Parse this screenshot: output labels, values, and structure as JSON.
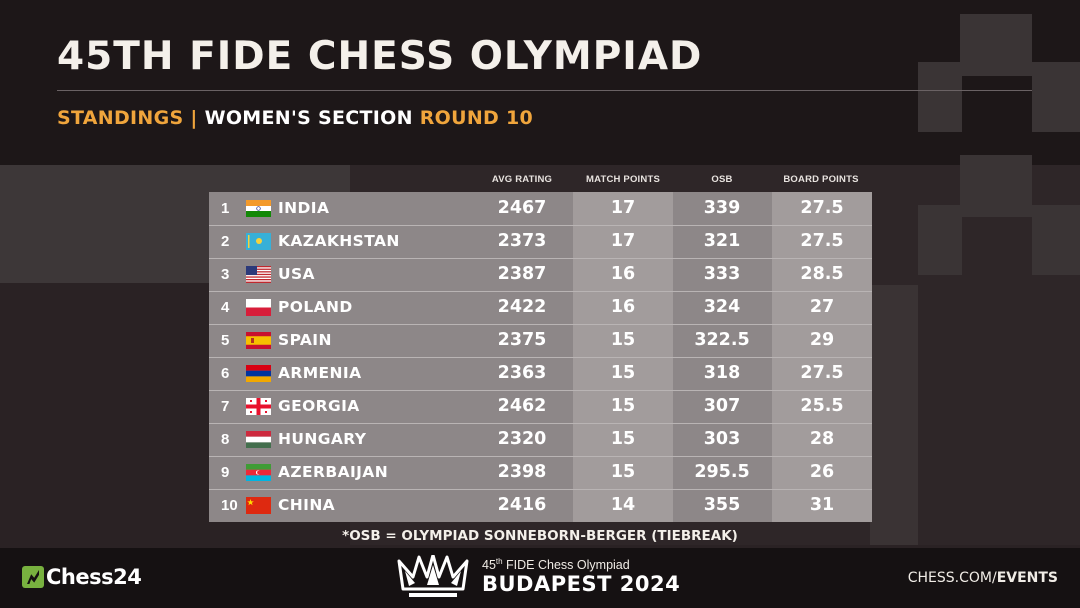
{
  "header": {
    "title": "45TH FIDE CHESS OLYMPIAD",
    "subtitle_part1": "STANDINGS |",
    "subtitle_part2": "WOMEN'S SECTION",
    "subtitle_part3": "ROUND 10"
  },
  "columns": {
    "avg_rating": "AVG RATING",
    "match_points": "MATCH POINTS",
    "osb": "OSB",
    "board_points": "BOARD POINTS"
  },
  "standings": [
    {
      "rank": "1",
      "country": "INDIA",
      "flag": "india-flag",
      "avg_rating": "2467",
      "match_points": "17",
      "osb": "339",
      "board_points": "27.5"
    },
    {
      "rank": "2",
      "country": "KAZAKHSTAN",
      "flag": "kazakhstan-flag",
      "avg_rating": "2373",
      "match_points": "17",
      "osb": "321",
      "board_points": "27.5"
    },
    {
      "rank": "3",
      "country": "USA",
      "flag": "usa-flag",
      "avg_rating": "2387",
      "match_points": "16",
      "osb": "333",
      "board_points": "28.5"
    },
    {
      "rank": "4",
      "country": "POLAND",
      "flag": "poland-flag",
      "avg_rating": "2422",
      "match_points": "16",
      "osb": "324",
      "board_points": "27"
    },
    {
      "rank": "5",
      "country": "SPAIN",
      "flag": "spain-flag",
      "avg_rating": "2375",
      "match_points": "15",
      "osb": "322.5",
      "board_points": "29"
    },
    {
      "rank": "6",
      "country": "ARMENIA",
      "flag": "armenia-flag",
      "avg_rating": "2363",
      "match_points": "15",
      "osb": "318",
      "board_points": "27.5"
    },
    {
      "rank": "7",
      "country": "GEORGIA",
      "flag": "georgia-flag",
      "avg_rating": "2462",
      "match_points": "15",
      "osb": "307",
      "board_points": "25.5"
    },
    {
      "rank": "8",
      "country": "HUNGARY",
      "flag": "hungary-flag",
      "avg_rating": "2320",
      "match_points": "15",
      "osb": "303",
      "board_points": "28"
    },
    {
      "rank": "9",
      "country": "AZERBAIJAN",
      "flag": "azerbaijan-flag",
      "avg_rating": "2398",
      "match_points": "15",
      "osb": "295.5",
      "board_points": "26"
    },
    {
      "rank": "10",
      "country": "CHINA",
      "flag": "china-flag",
      "avg_rating": "2416",
      "match_points": "14",
      "osb": "355",
      "board_points": "31"
    }
  ],
  "footnote": "*OSB = OLYMPIAD SONNEBORN-BERGER (TIEBREAK)",
  "footer": {
    "brand": "Chess24",
    "event_small_prefix": "45",
    "event_small_sup": "th",
    "event_small_suffix": " FIDE Chess Olympiad",
    "event_big": "BUDAPEST 2024",
    "site_prefix": "CHESS.COM/",
    "site_bold": "EVENTS"
  },
  "colors": {
    "accent": "#f0a53c",
    "table_bg": "#8d8788",
    "brand_green": "#78b13f"
  }
}
